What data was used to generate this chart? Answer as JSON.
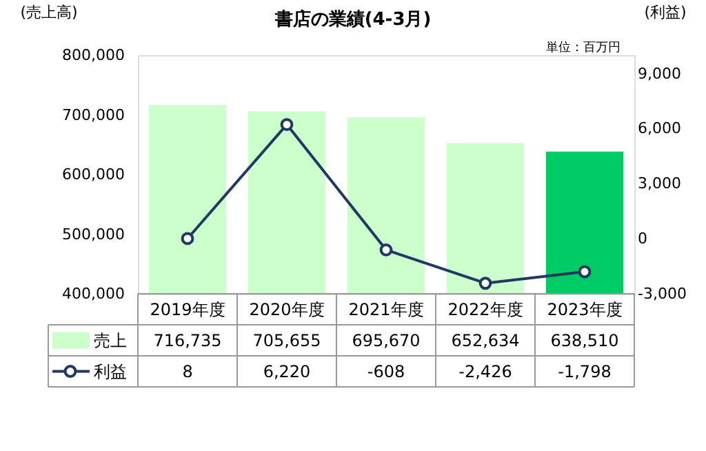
{
  "chart_data": {
    "type": "bar",
    "title": "書店の業績(4-3月)",
    "categories": [
      "2019年度",
      "2020年度",
      "2021年度",
      "2022年度",
      "2023年度"
    ],
    "series": [
      {
        "name": "売上",
        "colors": [
          "#ccffcc",
          "#ccffcc",
          "#ccffcc",
          "#ccffcc",
          "#00cc66"
        ],
        "values": [
          716735,
          705655,
          695670,
          652634,
          638510
        ],
        "value_labels": [
          "716,735",
          "705,655",
          "695,670",
          "652,634",
          "638,510"
        ]
      },
      {
        "name": "利益",
        "type": "line",
        "axis": "y2",
        "color": "#1f3864",
        "marker": "circle",
        "values": [
          8,
          6220,
          -608,
          -2426,
          -1798
        ],
        "value_labels": [
          "8",
          "6,220",
          "-608",
          "-2,426",
          "-1,798"
        ]
      }
    ],
    "ylabel": "(売上高)",
    "y2label": "(利益)",
    "ylim": [
      400000,
      800000
    ],
    "yticks": [
      {
        "value": 400000,
        "label": "400,000"
      },
      {
        "value": 500000,
        "label": "500,000"
      },
      {
        "value": 600000,
        "label": "600,000"
      },
      {
        "value": 700000,
        "label": "700,000"
      },
      {
        "value": 800000,
        "label": "800,000"
      }
    ],
    "y2lim": [
      -3000,
      10000
    ],
    "y2ticks": [
      {
        "value": -3000,
        "label": "-3,000"
      },
      0,
      {
        "value": 3000,
        "label": "3,000"
      },
      {
        "value": 6000,
        "label": "6,000"
      },
      {
        "value": 9000,
        "label": "9,000"
      }
    ],
    "annotations": [
      "単位：百万円"
    ],
    "legend": "bottom",
    "grid": false
  }
}
